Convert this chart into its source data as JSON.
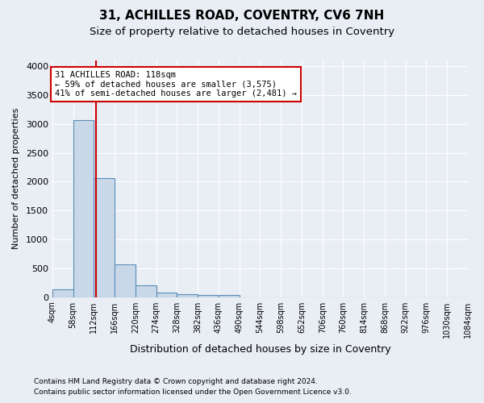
{
  "title": "31, ACHILLES ROAD, COVENTRY, CV6 7NH",
  "subtitle": "Size of property relative to detached houses in Coventry",
  "xlabel": "Distribution of detached houses by size in Coventry",
  "ylabel": "Number of detached properties",
  "footer_line1": "Contains HM Land Registry data © Crown copyright and database right 2024.",
  "footer_line2": "Contains public sector information licensed under the Open Government Licence v3.0.",
  "bin_edges": [
    4,
    58,
    112,
    166,
    220,
    274,
    328,
    382,
    436,
    490,
    544,
    598,
    652,
    706,
    760,
    814,
    868,
    922,
    976,
    1030,
    1084
  ],
  "bar_heights": [
    140,
    3060,
    2060,
    560,
    200,
    80,
    55,
    40,
    40,
    0,
    0,
    0,
    0,
    0,
    0,
    0,
    0,
    0,
    0,
    0
  ],
  "bar_color": "#c8d8e8",
  "bar_edge_color": "#5b8db8",
  "bar_edge_width": 0.8,
  "red_line_x": 118,
  "annotation_text": "31 ACHILLES ROAD: 118sqm\n← 59% of detached houses are smaller (3,575)\n41% of semi-detached houses are larger (2,481) →",
  "annotation_box_color": "#ffffff",
  "annotation_edge_color": "#cc0000",
  "ylim": [
    0,
    4100
  ],
  "yticks": [
    0,
    500,
    1000,
    1500,
    2000,
    2500,
    3000,
    3500,
    4000
  ],
  "background_color": "#e8eef4",
  "grid_color": "#ffffff",
  "title_fontsize": 11,
  "subtitle_fontsize": 9.5
}
